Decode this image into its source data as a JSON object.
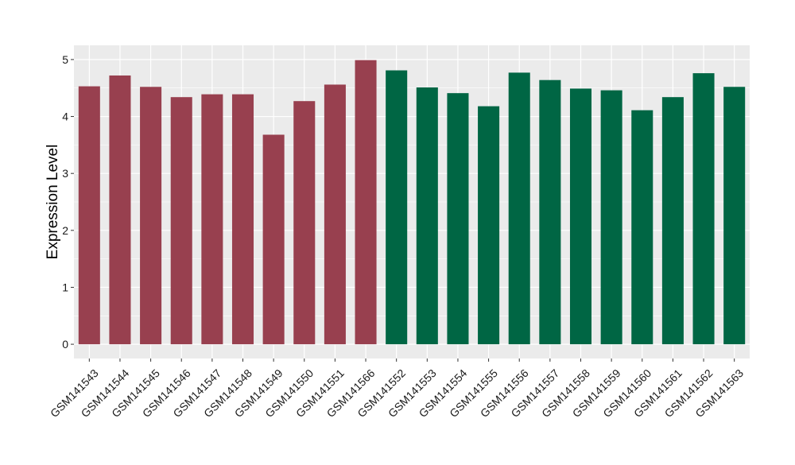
{
  "chart_data": {
    "type": "bar",
    "title": "",
    "xlabel": "",
    "ylabel": "Expression Level",
    "ylim": [
      -0.25,
      5.25
    ],
    "yticks": [
      0,
      1,
      2,
      3,
      4,
      5
    ],
    "grid": true,
    "legend": "none",
    "categories": [
      "GSM141543",
      "GSM141544",
      "GSM141545",
      "GSM141546",
      "GSM141547",
      "GSM141548",
      "GSM141549",
      "GSM141550",
      "GSM141551",
      "GSM141566",
      "GSM141552",
      "GSM141553",
      "GSM141554",
      "GSM141555",
      "GSM141556",
      "GSM141557",
      "GSM141558",
      "GSM141559",
      "GSM141560",
      "GSM141561",
      "GSM141562",
      "GSM141563"
    ],
    "values": [
      4.53,
      4.72,
      4.52,
      4.34,
      4.39,
      4.39,
      3.68,
      4.27,
      4.56,
      4.99,
      4.81,
      4.51,
      4.41,
      4.18,
      4.77,
      4.64,
      4.49,
      4.46,
      4.11,
      4.34,
      4.76,
      4.52
    ],
    "groups": [
      0,
      0,
      0,
      0,
      0,
      0,
      0,
      0,
      0,
      0,
      1,
      1,
      1,
      1,
      1,
      1,
      1,
      1,
      1,
      1,
      1,
      1
    ],
    "colors": [
      "#98404f",
      "#006644"
    ],
    "panel_background": "#ebebeb",
    "grid_color": "#ffffff"
  }
}
